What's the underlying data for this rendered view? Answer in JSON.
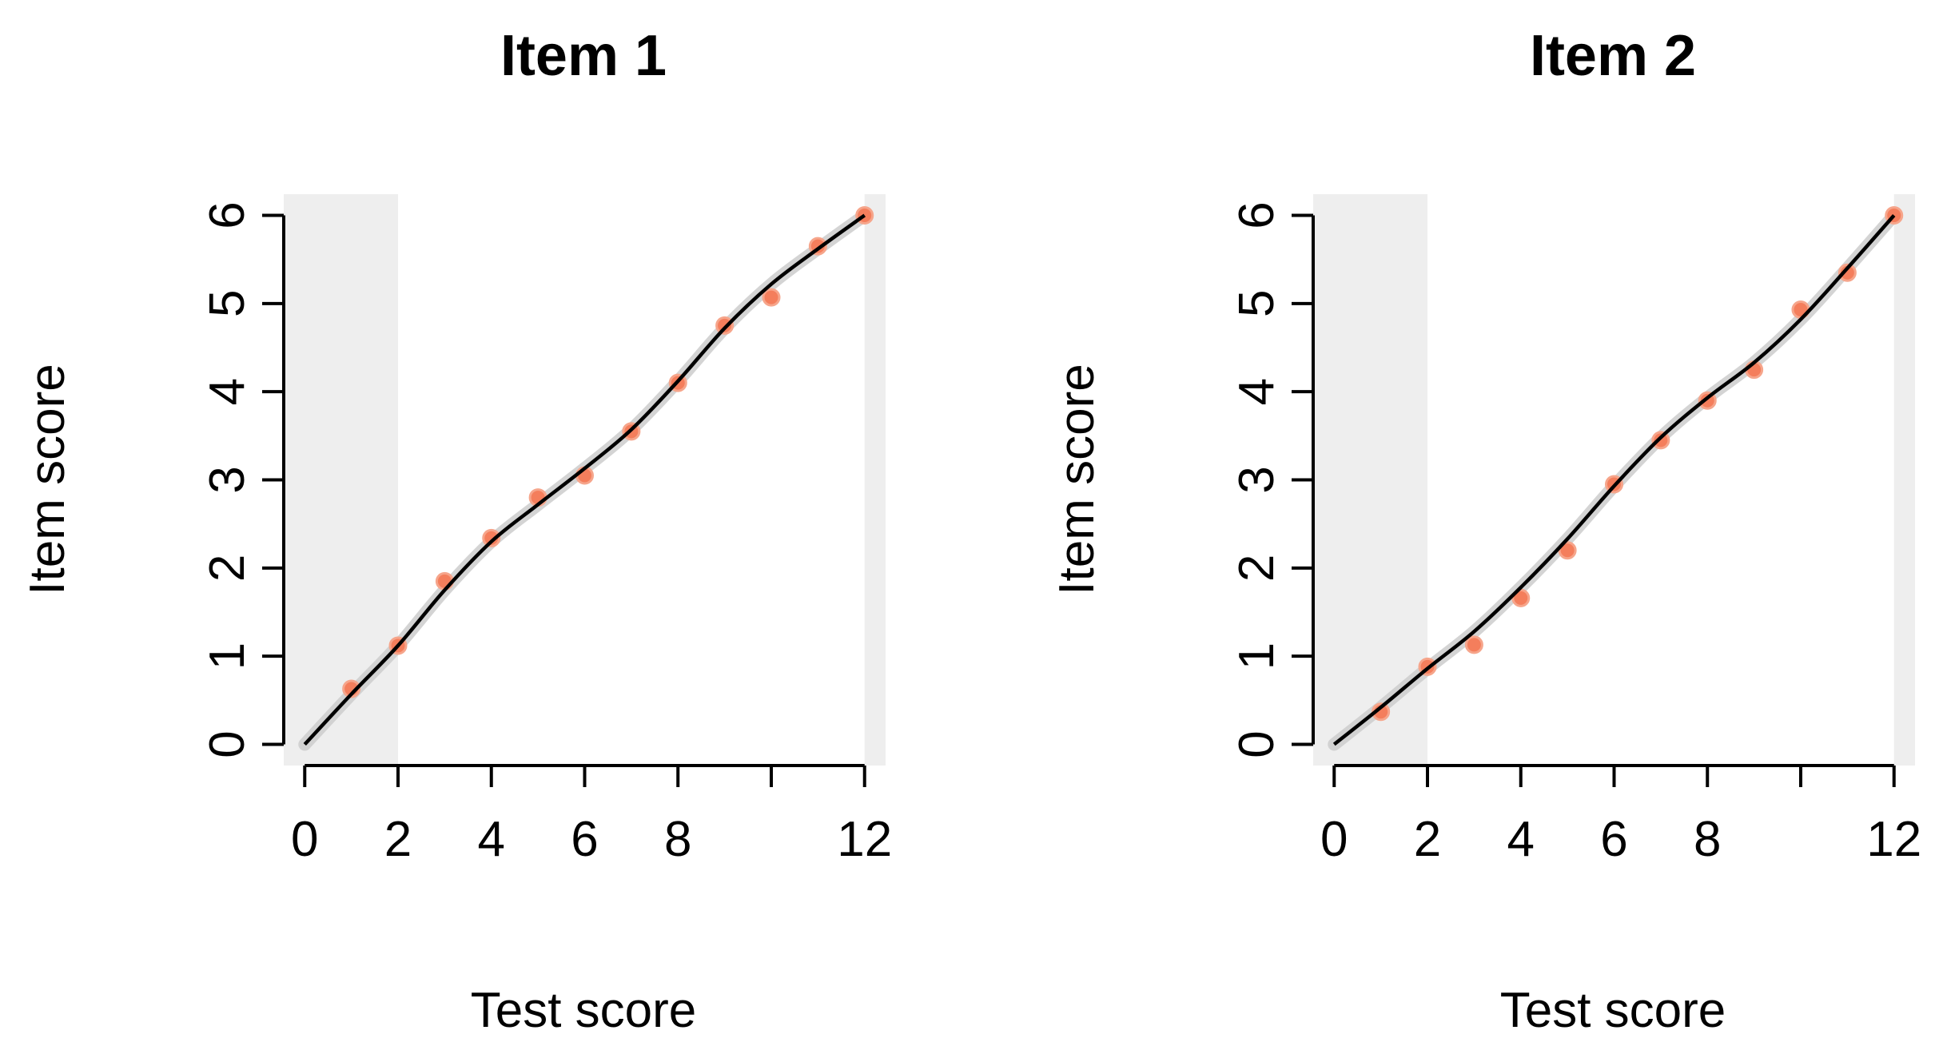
{
  "colors": {
    "point": "#F47E5C",
    "point_edge": "#F6A58B",
    "line": "#000000",
    "band": "#CCCCCC",
    "shade": "#EEEEEE"
  },
  "chart_data": [
    {
      "type": "line",
      "title": "Item 1",
      "xlabel": "Test score",
      "ylabel": "Item score",
      "xlim": [
        -0.45,
        12.45
      ],
      "ylim": [
        -0.24,
        6.24
      ],
      "x_ticks": [
        0,
        2,
        4,
        6,
        8,
        12
      ],
      "x_tick_labels": [
        "0",
        "2",
        "4",
        "6",
        "8",
        "12"
      ],
      "x_tick_marks": [
        0,
        2,
        4,
        6,
        8,
        10,
        12
      ],
      "y_ticks": [
        0,
        1,
        2,
        3,
        4,
        5,
        6
      ],
      "y_tick_labels": [
        "0",
        "1",
        "2",
        "3",
        "4",
        "5",
        "6"
      ],
      "grid": false,
      "shaded_regions": [
        [
          -0.45,
          2
        ],
        [
          12,
          12.45
        ]
      ],
      "points": {
        "x": [
          1,
          2,
          3,
          4,
          5,
          6,
          7,
          8,
          9,
          10,
          11,
          12
        ],
        "y": [
          0.63,
          1.12,
          1.85,
          2.34,
          2.8,
          3.05,
          3.55,
          4.1,
          4.75,
          5.07,
          5.65,
          6.0
        ]
      },
      "smooth": {
        "x": [
          0,
          1,
          2,
          3,
          4,
          5,
          6,
          7,
          8,
          9,
          10,
          11,
          12
        ],
        "y": [
          0,
          0.57,
          1.12,
          1.75,
          2.3,
          2.72,
          3.13,
          3.57,
          4.12,
          4.72,
          5.22,
          5.62,
          6.0
        ]
      }
    },
    {
      "type": "line",
      "title": "Item 2",
      "xlabel": "Test score",
      "ylabel": "Item score",
      "xlim": [
        -0.45,
        12.45
      ],
      "ylim": [
        -0.24,
        6.24
      ],
      "x_ticks": [
        0,
        2,
        4,
        6,
        8,
        12
      ],
      "x_tick_labels": [
        "0",
        "2",
        "4",
        "6",
        "8",
        "12"
      ],
      "x_tick_marks": [
        0,
        2,
        4,
        6,
        8,
        10,
        12
      ],
      "y_ticks": [
        0,
        1,
        2,
        3,
        4,
        5,
        6
      ],
      "y_tick_labels": [
        "0",
        "1",
        "2",
        "3",
        "4",
        "5",
        "6"
      ],
      "grid": false,
      "shaded_regions": [
        [
          -0.45,
          2
        ],
        [
          12,
          12.45
        ]
      ],
      "points": {
        "x": [
          1,
          2,
          3,
          4,
          5,
          6,
          7,
          8,
          9,
          10,
          11,
          12
        ],
        "y": [
          0.37,
          0.88,
          1.13,
          1.66,
          2.2,
          2.95,
          3.45,
          3.9,
          4.25,
          4.93,
          5.35,
          6.0
        ]
      },
      "smooth": {
        "x": [
          0,
          1,
          2,
          3,
          4,
          5,
          6,
          7,
          8,
          9,
          10,
          11,
          12
        ],
        "y": [
          0,
          0.42,
          0.86,
          1.28,
          1.78,
          2.33,
          2.93,
          3.48,
          3.93,
          4.33,
          4.82,
          5.4,
          6.0
        ]
      }
    }
  ]
}
